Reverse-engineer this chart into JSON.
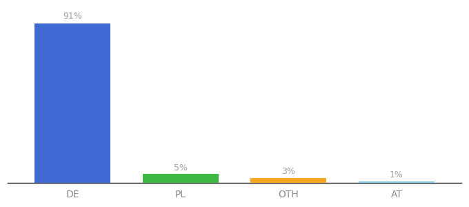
{
  "categories": [
    "DE",
    "PL",
    "OTH",
    "AT"
  ],
  "values": [
    91,
    5,
    3,
    1
  ],
  "bar_colors": [
    "#4169d4",
    "#3cb843",
    "#f5a623",
    "#7ec8e3"
  ],
  "value_labels": [
    "91%",
    "5%",
    "3%",
    "1%"
  ],
  "label_color": "#a0a0a0",
  "background_color": "#ffffff",
  "ylim": [
    0,
    100
  ],
  "bar_width": 0.7,
  "x_positions": [
    0,
    1,
    2,
    3
  ],
  "xlim": [
    -0.6,
    3.6
  ]
}
